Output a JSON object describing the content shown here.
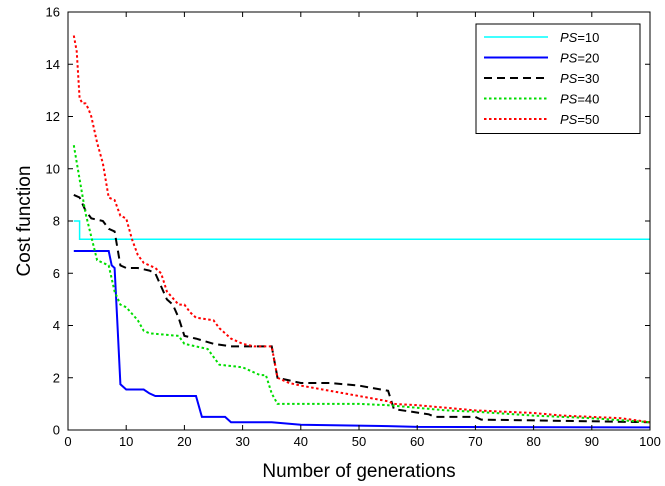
{
  "chart_data": {
    "type": "line",
    "title": "",
    "xlabel": "Number of generations",
    "ylabel": "Cost function",
    "xlim": [
      0,
      100
    ],
    "ylim": [
      0,
      16
    ],
    "xticks": [
      0,
      10,
      20,
      30,
      40,
      50,
      60,
      70,
      80,
      90,
      100
    ],
    "yticks": [
      0,
      2,
      4,
      6,
      8,
      10,
      12,
      14,
      16
    ],
    "grid": false,
    "legend_position": "top-right",
    "series": [
      {
        "name": "PS=10",
        "label_italic": "PS",
        "label_rest": "=10",
        "color": "#00FFFF",
        "dash": "solid",
        "width": 1.5,
        "step": true,
        "x": [
          1,
          2,
          100
        ],
        "y": [
          8.0,
          7.3,
          7.3
        ]
      },
      {
        "name": "PS=20",
        "label_italic": "PS",
        "label_rest": "=20",
        "color": "#0000FF",
        "dash": "solid",
        "width": 2,
        "step": false,
        "x": [
          1,
          7,
          7.5,
          8,
          8.5,
          9,
          10,
          13,
          14,
          15,
          22,
          23,
          27,
          28,
          35,
          40,
          55,
          60,
          100
        ],
        "y": [
          6.85,
          6.85,
          6.3,
          6.2,
          4.0,
          1.75,
          1.55,
          1.55,
          1.4,
          1.3,
          1.3,
          0.5,
          0.5,
          0.3,
          0.3,
          0.2,
          0.15,
          0.12,
          0.1
        ]
      },
      {
        "name": "PS=30",
        "label_italic": "PS",
        "label_rest": "=30",
        "color": "#000000",
        "dash": "8,5",
        "width": 2,
        "step": false,
        "x": [
          1,
          2,
          3,
          4,
          6,
          7,
          8,
          9,
          10,
          12,
          14,
          15,
          17,
          18,
          19,
          20,
          22,
          25,
          28,
          35,
          36,
          38,
          40,
          45,
          50,
          55,
          56,
          62,
          63,
          70,
          71,
          100
        ],
        "y": [
          9.0,
          8.9,
          8.4,
          8.1,
          8.0,
          7.7,
          7.6,
          6.3,
          6.2,
          6.2,
          6.1,
          6.0,
          5.0,
          4.8,
          4.3,
          3.6,
          3.5,
          3.3,
          3.2,
          3.2,
          2.0,
          1.9,
          1.8,
          1.8,
          1.7,
          1.5,
          0.8,
          0.6,
          0.5,
          0.5,
          0.4,
          0.3
        ]
      },
      {
        "name": "PS=40",
        "label_italic": "PS",
        "label_rest": "=40",
        "color": "#00DD00",
        "dash": "2.5,2.5",
        "width": 2,
        "step": false,
        "x": [
          1,
          2,
          3,
          4,
          5,
          6,
          7,
          8,
          9,
          10,
          12,
          13,
          14,
          19,
          20,
          22,
          24,
          25,
          26,
          30,
          32,
          33,
          34,
          35,
          36,
          40,
          48,
          50,
          55,
          60,
          65,
          70,
          80,
          90,
          100
        ],
        "y": [
          10.9,
          9.6,
          8.3,
          7.4,
          6.5,
          6.4,
          6.3,
          5.3,
          4.8,
          4.7,
          4.2,
          3.8,
          3.7,
          3.6,
          3.3,
          3.2,
          3.1,
          2.8,
          2.5,
          2.4,
          2.2,
          2.1,
          2.1,
          1.4,
          1.0,
          1.0,
          1.0,
          1.0,
          0.95,
          0.85,
          0.75,
          0.7,
          0.55,
          0.45,
          0.3
        ]
      },
      {
        "name": "PS=50",
        "label_italic": "PS",
        "label_rest": "=50",
        "color": "#FF0000",
        "dash": "2.5,2.5",
        "width": 2,
        "step": false,
        "x": [
          1,
          1.5,
          2,
          2.5,
          3,
          3.5,
          4,
          5,
          6,
          7,
          8,
          9,
          10,
          11,
          12,
          13,
          14,
          15,
          16,
          17,
          19,
          20,
          21,
          22,
          25,
          26,
          27,
          28,
          30,
          32,
          34,
          35,
          36,
          38,
          40,
          45,
          50,
          55,
          56,
          60,
          65,
          70,
          75,
          80,
          85,
          90,
          95,
          100
        ],
        "y": [
          15.1,
          14.5,
          12.7,
          12.5,
          12.5,
          12.3,
          12.0,
          11.0,
          10.2,
          8.9,
          8.8,
          8.2,
          8.1,
          7.3,
          6.7,
          6.4,
          6.3,
          6.2,
          6.0,
          5.3,
          4.8,
          4.8,
          4.5,
          4.3,
          4.2,
          3.9,
          3.7,
          3.5,
          3.3,
          3.2,
          3.2,
          3.2,
          2.0,
          1.8,
          1.7,
          1.5,
          1.3,
          1.1,
          1.0,
          0.95,
          0.85,
          0.75,
          0.7,
          0.65,
          0.55,
          0.5,
          0.45,
          0.3
        ]
      }
    ]
  }
}
